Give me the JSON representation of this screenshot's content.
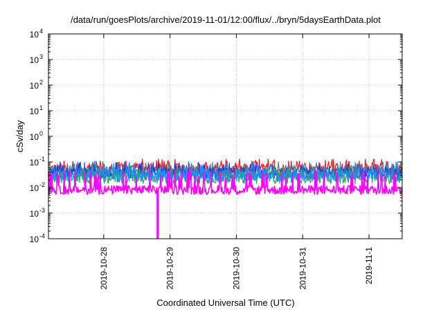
{
  "chart_data": {
    "type": "line",
    "title": "/data/run/goesPlots/archive/2019-11-01/12:00/flux/../bryn/5daysEarthData.plot",
    "xlabel": "Coordinated Universal Time (UTC)",
    "ylabel": "cSv/day",
    "yscale": "log",
    "ylim": [
      0.0001,
      10000
    ],
    "yticks": [
      {
        "exp": "-4",
        "value": 0.0001
      },
      {
        "exp": "-3",
        "value": 0.001
      },
      {
        "exp": "-2",
        "value": 0.01
      },
      {
        "exp": "-1",
        "value": 0.1
      },
      {
        "exp": "0",
        "value": 1
      },
      {
        "exp": "1",
        "value": 10
      },
      {
        "exp": "2",
        "value": 100
      },
      {
        "exp": "3",
        "value": 1000
      },
      {
        "exp": "4",
        "value": 10000
      }
    ],
    "ytick_base": "10",
    "xlim": [
      "2019-10-27T04:00",
      "2019-11-01T12:00"
    ],
    "xticks": [
      "2019-10-28",
      "2019-10-29",
      "2019-10-30",
      "2019-10-31",
      "2019-11-1"
    ],
    "grid": true,
    "legend": "none",
    "series": [
      {
        "color": "#e41a1c",
        "base": 0.05,
        "spread": 0.5,
        "spike": 0.12
      },
      {
        "color": "#377eb8",
        "base": 0.04,
        "spread": 0.5,
        "spike": 0.1
      },
      {
        "color": "#1f3fd0",
        "base": 0.035,
        "spread": 0.45,
        "spike": 0.09
      },
      {
        "color": "#2ca25f",
        "base": 0.025,
        "spread": 0.5,
        "spike": 0.06
      },
      {
        "color": "#1e90ff",
        "base": 0.03,
        "spread": 0.5,
        "spike": 0.07
      },
      {
        "color": "#ff00ff",
        "base": 0.008,
        "spread": 0.35,
        "spike": 0.04
      }
    ],
    "dropout": {
      "x": "2019-10-28T19:30",
      "y": 0.0001
    }
  }
}
